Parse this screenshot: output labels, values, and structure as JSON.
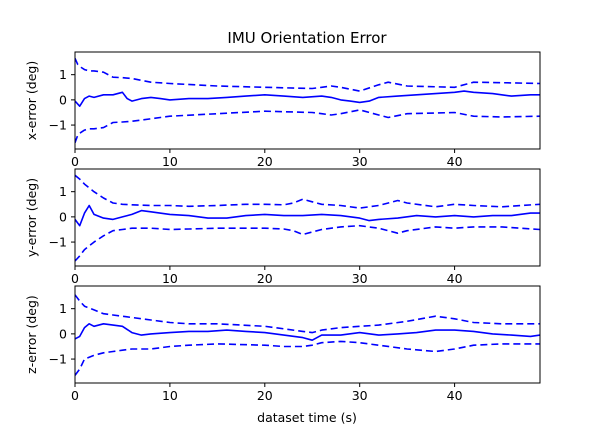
{
  "chart_data": {
    "type": "line",
    "title": "IMU Orientation Error",
    "xlabel": "dataset time (s)",
    "xlim": [
      0,
      49
    ],
    "xticks": [
      0,
      10,
      20,
      30,
      40
    ],
    "legend": "none",
    "grid": false,
    "colors": {
      "line": "#0000ff",
      "axes": "#000000",
      "background": "#ffffff"
    },
    "panels": [
      {
        "ylabel": "x-error (deg)",
        "ylim": [
          -1.95,
          1.9
        ],
        "yticks": [
          -1,
          0,
          1
        ],
        "series": [
          {
            "style": "solid",
            "x": [
              0,
              0.5,
              1,
              1.5,
              2,
              3,
              4,
              5,
              5.5,
              6,
              7,
              8,
              9,
              10,
              12,
              14,
              16,
              18,
              20,
              22,
              24,
              26,
              27,
              28,
              29,
              30,
              31,
              32,
              34,
              36,
              38,
              40,
              41,
              42,
              44,
              46,
              48,
              49
            ],
            "y": [
              -0.05,
              -0.25,
              0.05,
              0.15,
              0.1,
              0.2,
              0.2,
              0.3,
              0.05,
              -0.05,
              0.05,
              0.1,
              0.05,
              0.0,
              0.05,
              0.05,
              0.1,
              0.15,
              0.2,
              0.15,
              0.1,
              0.15,
              0.1,
              0.0,
              -0.05,
              -0.1,
              -0.05,
              0.1,
              0.15,
              0.2,
              0.25,
              0.3,
              0.35,
              0.3,
              0.25,
              0.15,
              0.2,
              0.2
            ]
          },
          {
            "style": "dashed",
            "x": [
              0,
              0.3,
              0.6,
              1,
              1.5,
              2,
              3,
              4,
              5,
              6,
              8,
              10,
              15,
              20,
              25,
              26,
              27,
              28,
              30,
              32,
              33,
              35,
              40,
              42,
              45,
              49
            ],
            "y": [
              1.65,
              1.4,
              1.3,
              1.2,
              1.15,
              1.15,
              1.1,
              0.9,
              0.88,
              0.85,
              0.7,
              0.65,
              0.55,
              0.5,
              0.45,
              0.5,
              0.55,
              0.5,
              0.35,
              0.6,
              0.7,
              0.55,
              0.5,
              0.7,
              0.68,
              0.65
            ]
          },
          {
            "style": "dashed",
            "x": [
              0,
              0.3,
              0.6,
              1,
              1.5,
              2,
              3,
              4,
              5,
              6,
              8,
              10,
              15,
              20,
              25,
              26,
              27,
              28,
              30,
              32,
              33,
              35,
              40,
              42,
              45,
              49
            ],
            "y": [
              -1.7,
              -1.4,
              -1.3,
              -1.2,
              -1.15,
              -1.15,
              -1.1,
              -0.9,
              -0.88,
              -0.85,
              -0.75,
              -0.65,
              -0.55,
              -0.45,
              -0.5,
              -0.55,
              -0.6,
              -0.55,
              -0.4,
              -0.6,
              -0.7,
              -0.55,
              -0.5,
              -0.65,
              -0.68,
              -0.65
            ]
          }
        ]
      },
      {
        "ylabel": "y-error (deg)",
        "ylim": [
          -1.95,
          1.9
        ],
        "yticks": [
          -1,
          0,
          1
        ],
        "series": [
          {
            "style": "solid",
            "x": [
              0,
              0.5,
              1,
              1.5,
              2,
              3,
              4,
              5,
              6,
              7,
              8,
              10,
              12,
              14,
              16,
              18,
              20,
              22,
              24,
              26,
              28,
              30,
              31,
              32,
              34,
              36,
              38,
              40,
              42,
              44,
              46,
              48,
              49
            ],
            "y": [
              -0.1,
              -0.35,
              0.15,
              0.45,
              0.1,
              -0.05,
              -0.1,
              0.0,
              0.1,
              0.25,
              0.2,
              0.1,
              0.05,
              -0.05,
              -0.05,
              0.05,
              0.1,
              0.05,
              0.05,
              0.1,
              0.05,
              -0.05,
              -0.15,
              -0.1,
              -0.05,
              0.05,
              0.0,
              0.05,
              0.0,
              0.05,
              0.05,
              0.15,
              0.15
            ]
          },
          {
            "style": "dashed",
            "x": [
              0,
              0.5,
              1,
              2,
              3,
              4,
              5,
              6,
              8,
              10,
              12,
              15,
              18,
              20,
              22,
              23,
              24,
              25,
              26,
              28,
              30,
              32,
              34,
              35,
              38,
              40,
              42,
              45,
              49
            ],
            "y": [
              1.65,
              1.5,
              1.3,
              1.0,
              0.75,
              0.55,
              0.5,
              0.48,
              0.45,
              0.45,
              0.42,
              0.45,
              0.5,
              0.5,
              0.48,
              0.55,
              0.7,
              0.6,
              0.5,
              0.45,
              0.35,
              0.45,
              0.65,
              0.55,
              0.4,
              0.5,
              0.45,
              0.4,
              0.5
            ]
          },
          {
            "style": "dashed",
            "x": [
              0,
              0.5,
              1,
              2,
              3,
              4,
              5,
              6,
              8,
              10,
              12,
              15,
              18,
              20,
              22,
              23,
              24,
              25,
              26,
              28,
              30,
              32,
              34,
              35,
              38,
              40,
              42,
              45,
              49
            ],
            "y": [
              -1.75,
              -1.55,
              -1.3,
              -1.0,
              -0.75,
              -0.55,
              -0.5,
              -0.45,
              -0.45,
              -0.5,
              -0.48,
              -0.45,
              -0.45,
              -0.45,
              -0.48,
              -0.55,
              -0.7,
              -0.6,
              -0.5,
              -0.4,
              -0.35,
              -0.45,
              -0.65,
              -0.55,
              -0.4,
              -0.45,
              -0.4,
              -0.4,
              -0.5
            ]
          }
        ]
      },
      {
        "ylabel": "z-error (deg)",
        "ylim": [
          -1.95,
          1.9
        ],
        "yticks": [
          -1,
          0,
          1
        ],
        "series": [
          {
            "style": "solid",
            "x": [
              0,
              0.5,
              1,
              1.5,
              2,
              3,
              4,
              5,
              6,
              7,
              8,
              10,
              12,
              14,
              16,
              18,
              20,
              22,
              24,
              25,
              26,
              28,
              30,
              32,
              34,
              36,
              38,
              40,
              42,
              44,
              46,
              48,
              49
            ],
            "y": [
              -0.2,
              -0.1,
              0.25,
              0.4,
              0.3,
              0.4,
              0.35,
              0.3,
              0.05,
              -0.05,
              0.0,
              0.05,
              0.1,
              0.1,
              0.15,
              0.1,
              0.05,
              -0.05,
              -0.15,
              -0.25,
              -0.05,
              -0.05,
              0.05,
              -0.05,
              0.0,
              0.05,
              0.15,
              0.15,
              0.1,
              0.0,
              -0.05,
              -0.1,
              -0.05
            ]
          },
          {
            "style": "dashed",
            "x": [
              0,
              0.5,
              1,
              2,
              3,
              4,
              5,
              6,
              8,
              10,
              12,
              15,
              20,
              22,
              24,
              25,
              26,
              28,
              30,
              32,
              35,
              38,
              40,
              42,
              45,
              49
            ],
            "y": [
              1.55,
              1.3,
              1.1,
              0.95,
              0.8,
              0.75,
              0.7,
              0.65,
              0.55,
              0.45,
              0.4,
              0.4,
              0.3,
              0.2,
              0.1,
              0.05,
              0.15,
              0.25,
              0.3,
              0.35,
              0.5,
              0.7,
              0.6,
              0.45,
              0.4,
              0.4
            ]
          },
          {
            "style": "dashed",
            "x": [
              0,
              0.5,
              1,
              2,
              3,
              4,
              5,
              6,
              8,
              10,
              12,
              15,
              20,
              22,
              24,
              25,
              26,
              28,
              30,
              32,
              35,
              38,
              40,
              42,
              45,
              49
            ],
            "y": [
              -1.65,
              -1.4,
              -1.0,
              -0.85,
              -0.75,
              -0.7,
              -0.65,
              -0.6,
              -0.6,
              -0.5,
              -0.45,
              -0.4,
              -0.45,
              -0.5,
              -0.5,
              -0.45,
              -0.35,
              -0.3,
              -0.35,
              -0.45,
              -0.6,
              -0.7,
              -0.6,
              -0.45,
              -0.4,
              -0.4
            ]
          }
        ]
      }
    ]
  }
}
